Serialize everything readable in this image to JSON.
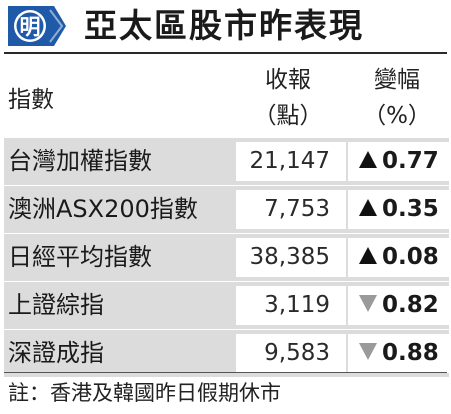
{
  "header": {
    "logo_char": "明",
    "title": "亞太區股市昨表現"
  },
  "columns": {
    "index": "指數",
    "close_line1": "收報",
    "close_line2": "（點）",
    "change_line1": "變幅",
    "change_line2": "（%）"
  },
  "rows": [
    {
      "name": "台灣加權指數",
      "close": "21,147",
      "direction": "up",
      "change": "0.77"
    },
    {
      "name": "澳洲ASX200指數",
      "close": "7,753",
      "direction": "up",
      "change": "0.35"
    },
    {
      "name": "日經平均指數",
      "close": "38,385",
      "direction": "up",
      "change": "0.08"
    },
    {
      "name": "上證綜指",
      "close": "3,119",
      "direction": "down",
      "change": "0.82"
    },
    {
      "name": "深證成指",
      "close": "9,583",
      "direction": "down",
      "change": "0.88"
    }
  ],
  "footnote": "註：香港及韓國昨日假期休市",
  "colors": {
    "up_arrow": "#111111",
    "down_arrow": "#9a9a9a",
    "logo_blue": "#1e5aa8",
    "row_bg": "#dcdcdc"
  }
}
